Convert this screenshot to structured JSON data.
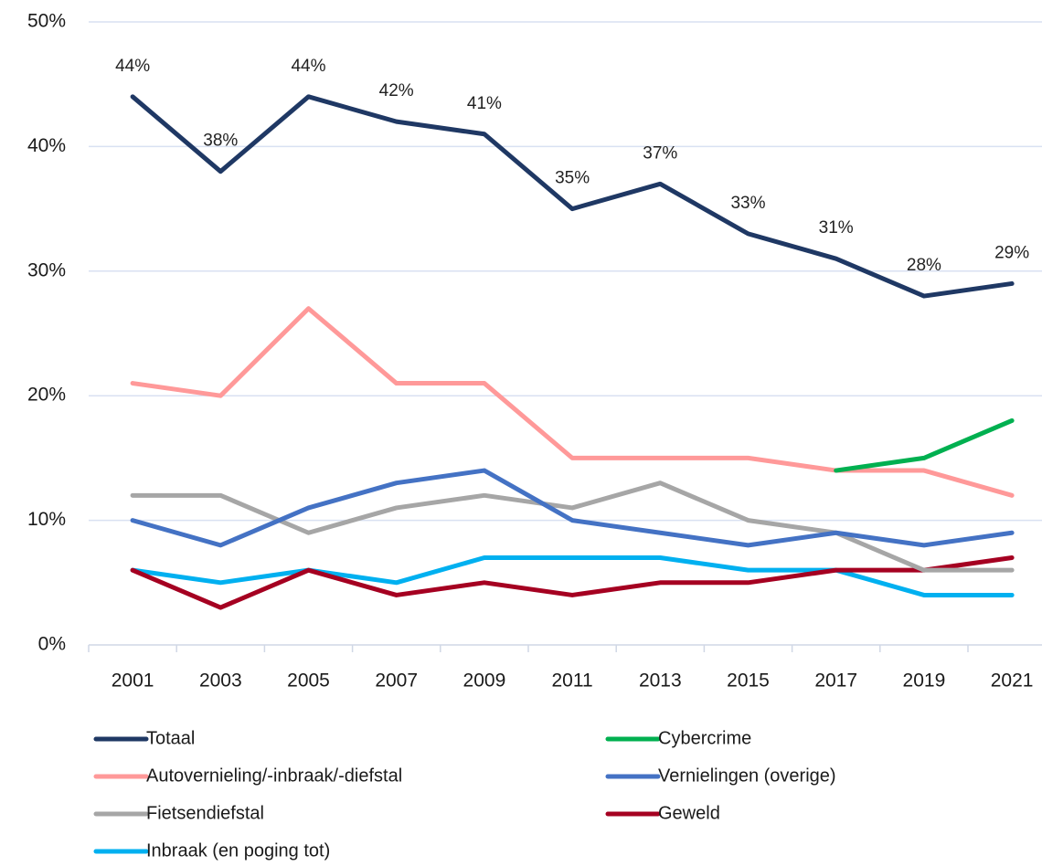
{
  "chart_data": {
    "type": "line",
    "categories": [
      "2001",
      "2003",
      "2005",
      "2007",
      "2009",
      "2011",
      "2013",
      "2015",
      "2017",
      "2019",
      "2021"
    ],
    "ylim": [
      0,
      50
    ],
    "yticks": [
      {
        "value": 0,
        "label": "0%"
      },
      {
        "value": 10,
        "label": "10%"
      },
      {
        "value": 20,
        "label": "20%"
      },
      {
        "value": 30,
        "label": "30%"
      },
      {
        "value": 40,
        "label": "40%"
      },
      {
        "value": 50,
        "label": "50%"
      }
    ],
    "grid": true,
    "legend": "bottom",
    "series": [
      {
        "name": "Totaal",
        "color": "#1f3864",
        "values": [
          44,
          38,
          44,
          42,
          41,
          35,
          37,
          33,
          31,
          28,
          29
        ],
        "value_labels": [
          "44%",
          "38%",
          "44%",
          "42%",
          "41%",
          "35%",
          "37%",
          "33%",
          "31%",
          "28%",
          "29%"
        ]
      },
      {
        "name": "Cybercrime",
        "color": "#00b050",
        "values": [
          null,
          null,
          null,
          null,
          null,
          null,
          null,
          null,
          14,
          15,
          18
        ]
      },
      {
        "name": "Autovernieling/-inbraak/-diefstal",
        "color": "#ff9999",
        "values": [
          21,
          20,
          27,
          21,
          21,
          15,
          15,
          15,
          14,
          14,
          12
        ]
      },
      {
        "name": "Vernielingen (overige)",
        "color": "#4472c4",
        "values": [
          10,
          8,
          11,
          13,
          14,
          10,
          9,
          8,
          9,
          8,
          9
        ]
      },
      {
        "name": "Fietsendiefstal",
        "color": "#a6a6a6",
        "values": [
          12,
          12,
          9,
          11,
          12,
          11,
          13,
          10,
          9,
          6,
          6
        ]
      },
      {
        "name": "Geweld",
        "color": "#a50021",
        "values": [
          6,
          3,
          6,
          4,
          5,
          4,
          5,
          5,
          6,
          6,
          7
        ]
      },
      {
        "name": "Inbraak (en poging tot)",
        "color": "#00b0f0",
        "values": [
          6,
          5,
          6,
          5,
          7,
          7,
          7,
          6,
          6,
          4,
          4
        ]
      }
    ]
  }
}
